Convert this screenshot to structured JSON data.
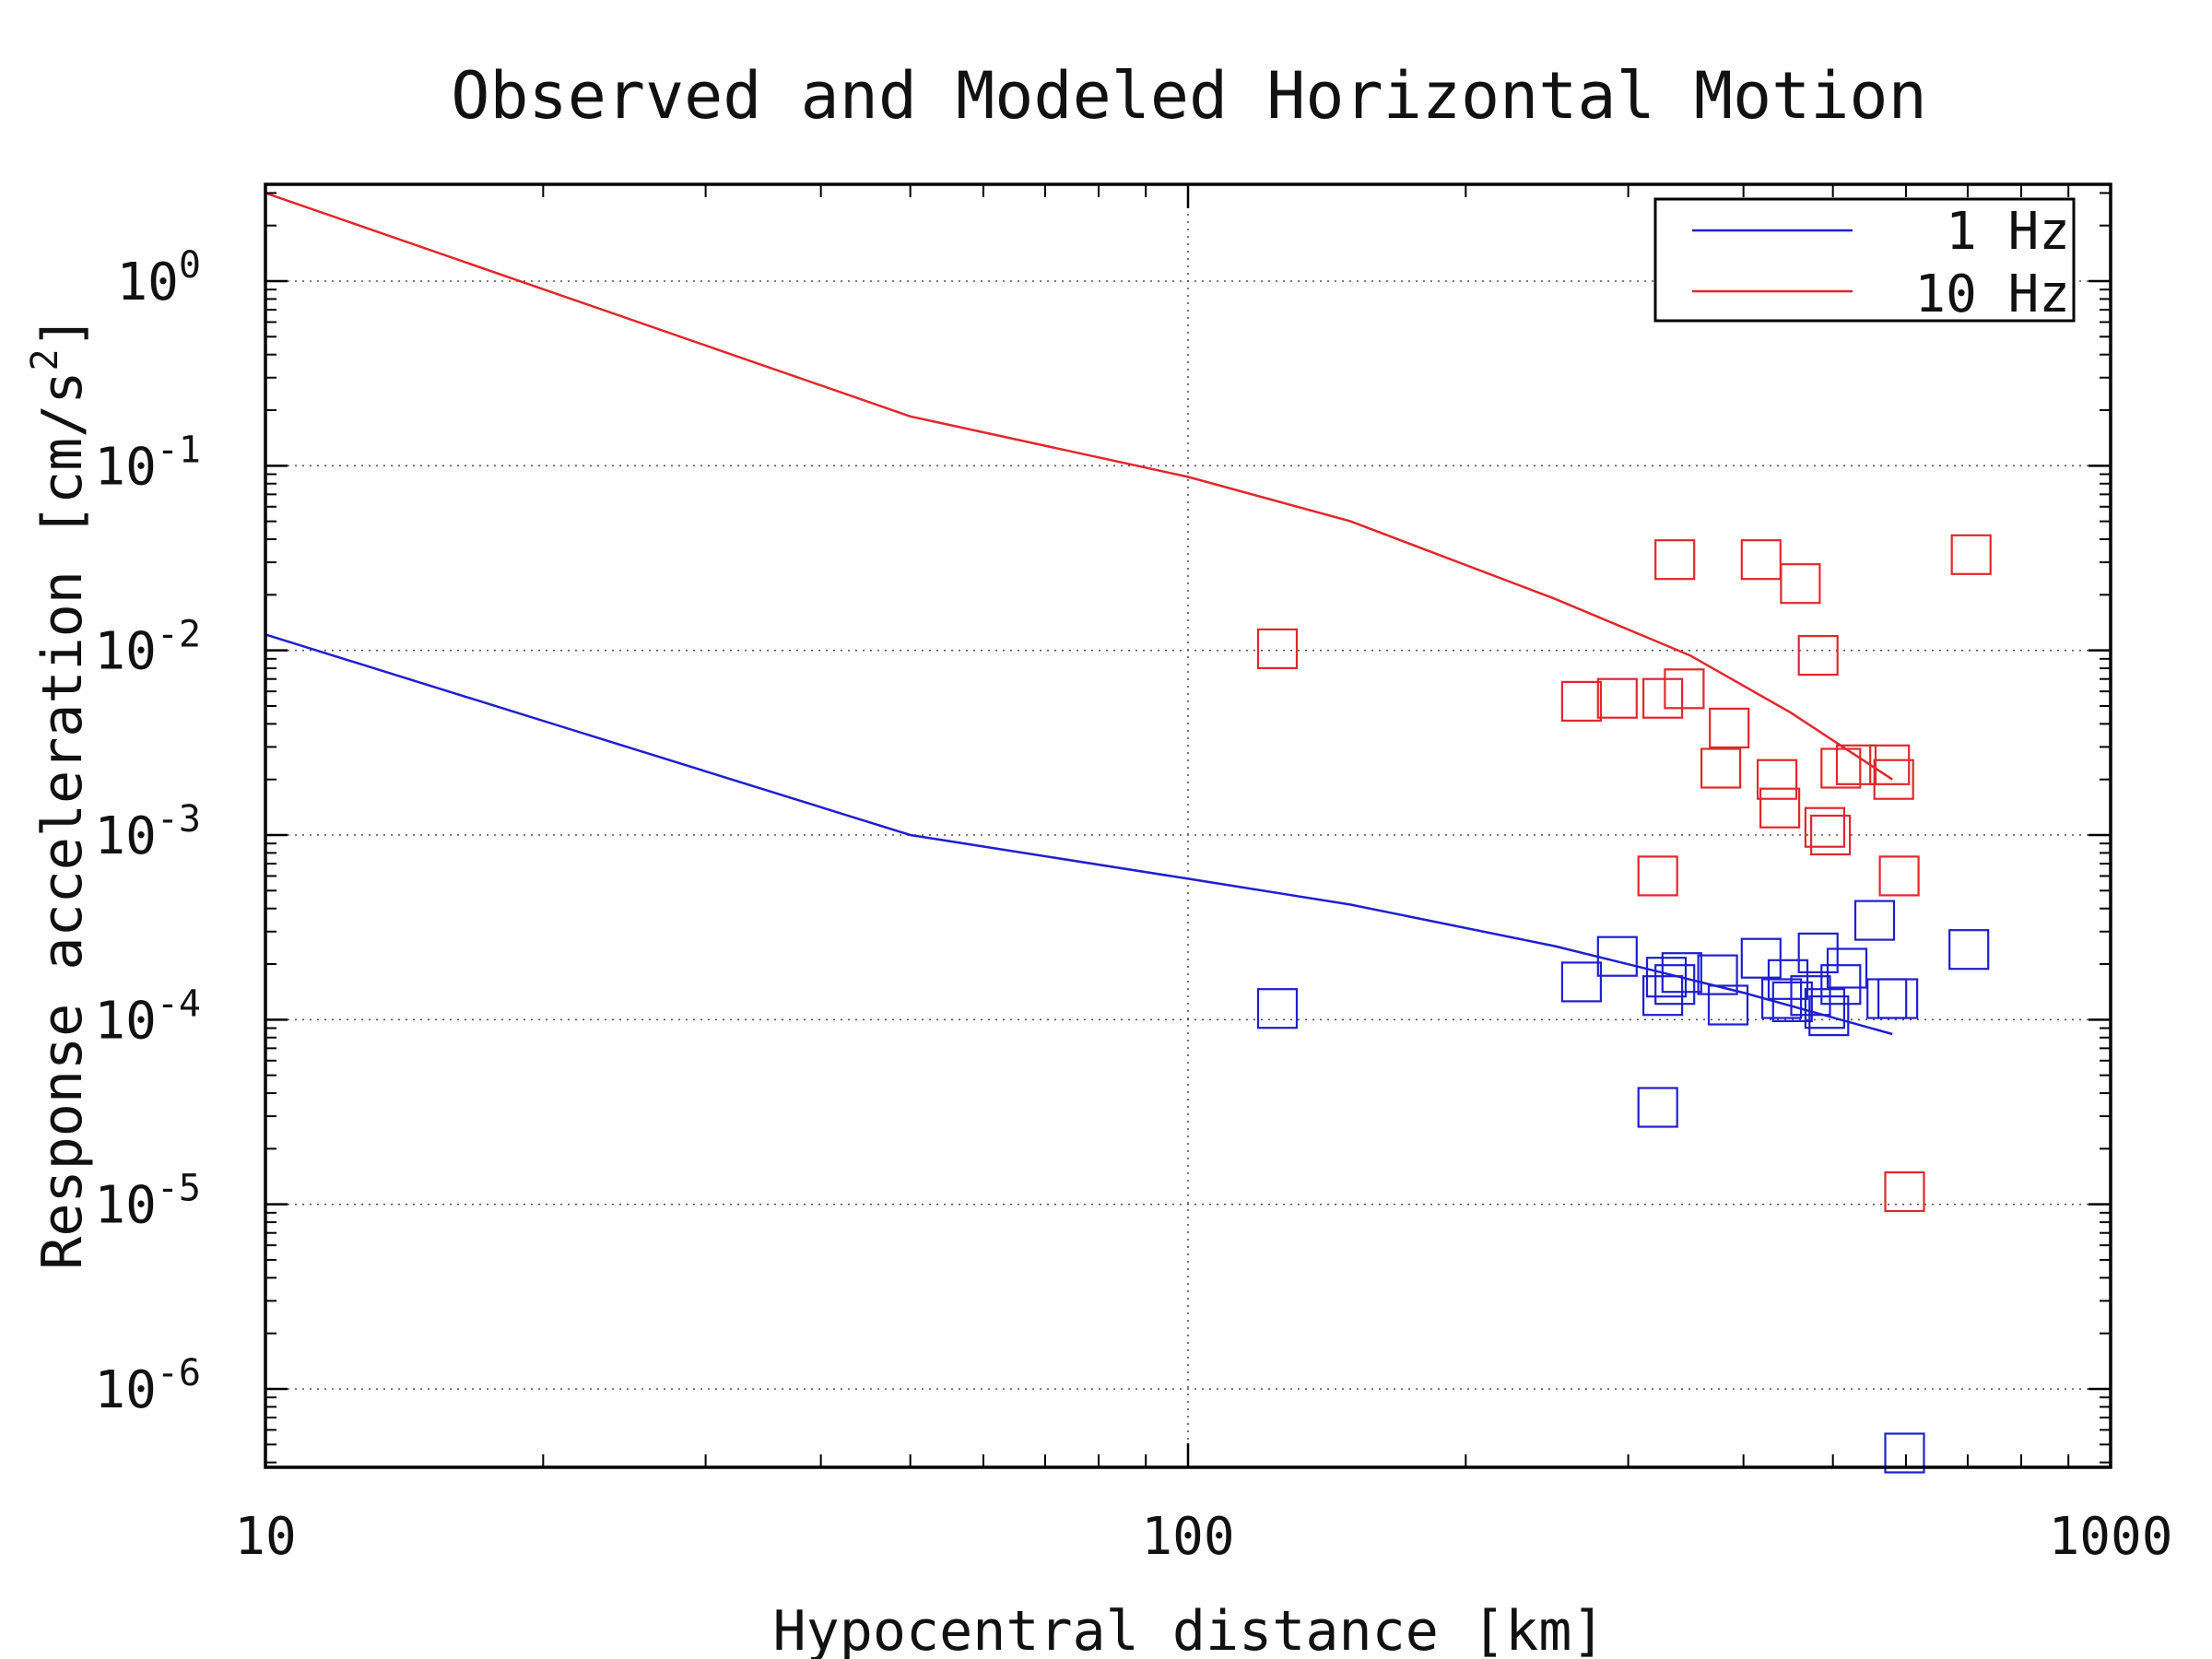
{
  "chart_data": {
    "type": "scatter",
    "title": "Observed and Modeled Horizontal Motion",
    "xlabel": "Hypocentral distance [km]",
    "ylabel_main": "Response acceleration [cm/s",
    "ylabel_sup": "2",
    "ylabel_tail": "]",
    "x_scale": "log",
    "y_scale": "log",
    "xlim": [
      10,
      1000
    ],
    "ylim": [
      4e-07,
      3
    ],
    "grid": true,
    "legend_position": "top-right",
    "x_ticks": [
      {
        "value": 10,
        "label": "10"
      },
      {
        "value": 100,
        "label": "100"
      },
      {
        "value": 1000,
        "label": "1000"
      }
    ],
    "y_ticks": [
      {
        "value": 1,
        "base": "10",
        "exp": "0"
      },
      {
        "value": 0.1,
        "base": "10",
        "exp": "-1"
      },
      {
        "value": 0.01,
        "base": "10",
        "exp": "-2"
      },
      {
        "value": 0.001,
        "base": "10",
        "exp": "-3"
      },
      {
        "value": 0.0001,
        "base": "10",
        "exp": "-4"
      },
      {
        "value": 1e-05,
        "base": "10",
        "exp": "-5"
      },
      {
        "value": 1e-06,
        "base": "10",
        "exp": "-6"
      }
    ],
    "series": [
      {
        "name": "1 Hz",
        "color": "#1f1fd0",
        "line": [
          [
            10,
            0.0122
          ],
          [
            50,
            0.001
          ],
          [
            100,
            0.00058
          ],
          [
            150,
            0.00042
          ],
          [
            250,
            0.00025
          ],
          [
            400,
            0.00014
          ],
          [
            580,
            8.35e-05
          ]
        ],
        "points": [
          [
            125,
            0.000115
          ],
          [
            267,
            0.00016
          ],
          [
            292,
            0.00022
          ],
          [
            323,
            3.35e-05
          ],
          [
            327,
            0.000135
          ],
          [
            330,
            0.00017
          ],
          [
            337,
            0.000155
          ],
          [
            343,
            0.00018
          ],
          [
            375,
            0.000175
          ],
          [
            385,
            0.00012
          ],
          [
            418,
            0.000215
          ],
          [
            440,
            0.00013
          ],
          [
            447,
            0.000165
          ],
          [
            452,
            0.000125
          ],
          [
            473,
            0.000135
          ],
          [
            482,
            0.00023
          ],
          [
            490,
            0.000115
          ],
          [
            495,
            0.000105
          ],
          [
            510,
            0.000155
          ],
          [
            518,
            0.00019
          ],
          [
            555,
            0.000345
          ],
          [
            572,
            0.00013
          ],
          [
            588,
            0.00013
          ],
          [
            598,
            4.5e-07
          ],
          [
            702,
            0.00024
          ]
        ]
      },
      {
        "name": "10 Hz",
        "color": "#e0282d",
        "line": [
          [
            10,
            3.0
          ],
          [
            50,
            0.185
          ],
          [
            100,
            0.087
          ],
          [
            150,
            0.05
          ],
          [
            250,
            0.019
          ],
          [
            350,
            0.0094
          ],
          [
            450,
            0.0046
          ],
          [
            580,
            0.002
          ]
        ],
        "points": [
          [
            125,
            0.0102
          ],
          [
            267,
            0.0053
          ],
          [
            292,
            0.0055
          ],
          [
            323,
            0.0006
          ],
          [
            327,
            0.0055
          ],
          [
            337,
            0.031
          ],
          [
            345,
            0.0062
          ],
          [
            378,
            0.0023
          ],
          [
            386,
            0.0038
          ],
          [
            418,
            0.031
          ],
          [
            435,
            0.002
          ],
          [
            438,
            0.0014
          ],
          [
            461,
            0.023
          ],
          [
            482,
            0.0094
          ],
          [
            490,
            0.0011
          ],
          [
            497,
            0.001
          ],
          [
            510,
            0.0023
          ],
          [
            530,
            0.0024
          ],
          [
            576,
            0.0024
          ],
          [
            582,
            0.002
          ],
          [
            590,
            0.0006
          ],
          [
            598,
            1.17e-05
          ],
          [
            706,
            0.033
          ]
        ]
      }
    ]
  }
}
